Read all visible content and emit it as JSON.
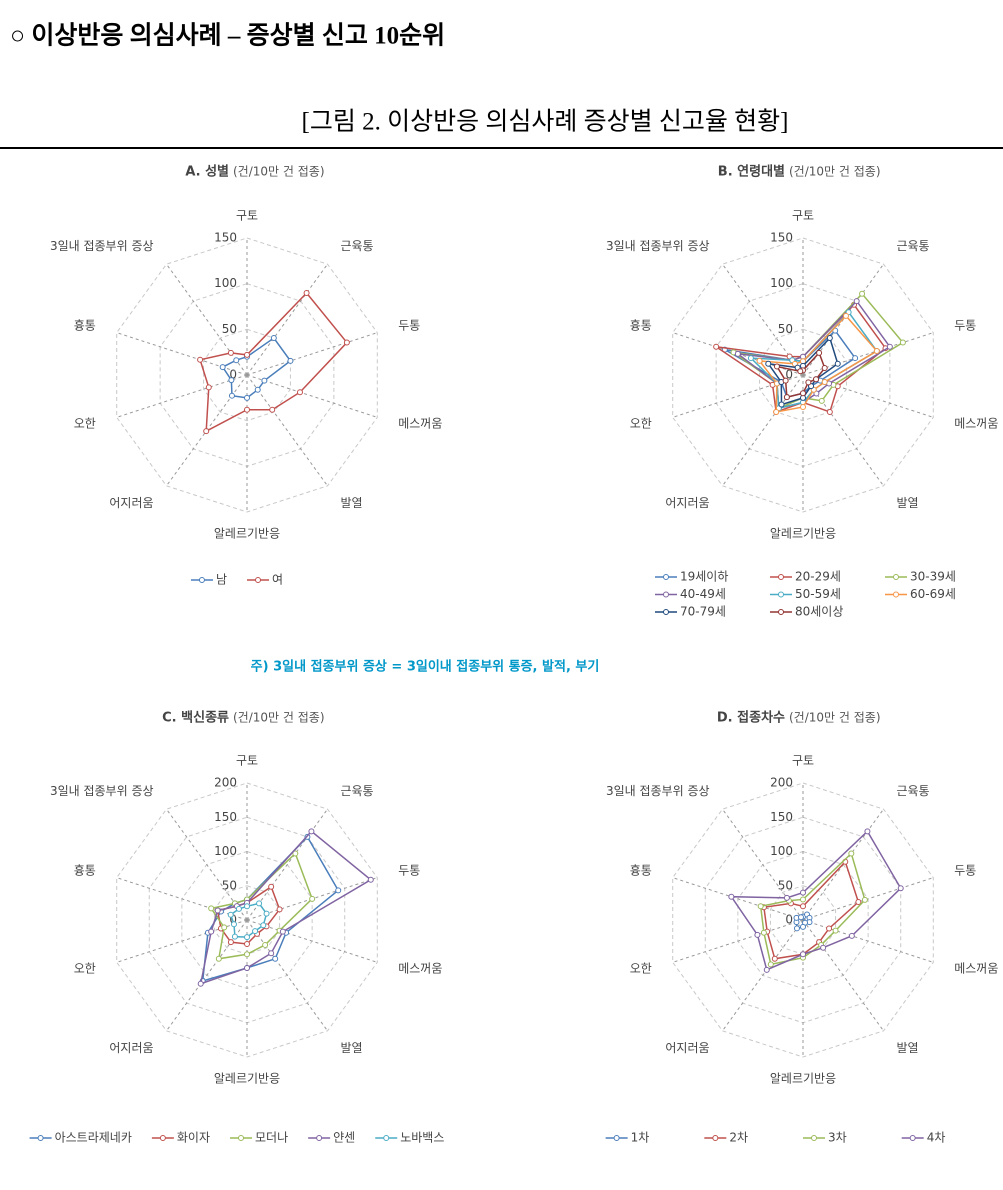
{
  "heading": "○ 이상반응 의심사례 – 증상별 신고 10순위",
  "figure_title": "[그림 2. 이상반응 의심사례 증상별 신고율 현황]",
  "note": "주) 3일내 접종부위 증상 = 3일이내 접종부위 통증, 발적, 부기",
  "chart_data": [
    {
      "type": "radar",
      "title": "A. 성별",
      "subtitle": "(건/10만 건 접종)",
      "categories": [
        "구토",
        "근육통",
        "두통",
        "메스꺼움",
        "발열",
        "알레르기반응",
        "어지러움",
        "오한",
        "흉통",
        "3일내 접종부위 증상"
      ],
      "rlim": [
        0,
        150
      ],
      "rticks": [
        0,
        50,
        100,
        150
      ],
      "series": [
        {
          "name": "남",
          "color": "#4a7ebb",
          "values": [
            20,
            50,
            50,
            20,
            20,
            25,
            28,
            18,
            28,
            20
          ]
        },
        {
          "name": "여",
          "color": "#c0504d",
          "values": [
            22,
            111,
            115,
            61,
            47,
            38,
            76,
            44,
            54,
            30
          ]
        }
      ]
    },
    {
      "type": "radar",
      "title": "B. 연령대별",
      "subtitle": "(건/10만 건 접종)",
      "categories": [
        "구토",
        "근육통",
        "두통",
        "메스꺼움",
        "발열",
        "알레르기반응",
        "어지러움",
        "오한",
        "흉통",
        "3일내 접종부위 증상"
      ],
      "rlim": [
        0,
        150
      ],
      "rticks": [
        0,
        50,
        100,
        150
      ],
      "series": [
        {
          "name": "19세이하",
          "color": "#4a7ebb",
          "values": [
            15,
            60,
            60,
            20,
            15,
            20,
            30,
            25,
            90,
            20
          ]
        },
        {
          "name": "20-29세",
          "color": "#c0504d",
          "values": [
            20,
            95,
            95,
            40,
            50,
            30,
            50,
            35,
            100,
            25
          ]
        },
        {
          "name": "30-39세",
          "color": "#9bbb59",
          "values": [
            20,
            110,
            115,
            35,
            35,
            25,
            45,
            30,
            80,
            20
          ]
        },
        {
          "name": "40-49세",
          "color": "#8064a2",
          "values": [
            20,
            100,
            100,
            30,
            25,
            30,
            45,
            30,
            75,
            20
          ]
        },
        {
          "name": "50-59세",
          "color": "#4bacc6",
          "values": [
            15,
            85,
            85,
            25,
            20,
            30,
            45,
            30,
            60,
            20
          ]
        },
        {
          "name": "60-69세",
          "color": "#f79646",
          "values": [
            15,
            80,
            85,
            25,
            20,
            35,
            50,
            30,
            50,
            15
          ]
        },
        {
          "name": "70-79세",
          "color": "#1f497d",
          "values": [
            10,
            50,
            40,
            15,
            15,
            25,
            40,
            25,
            40,
            10
          ]
        },
        {
          "name": "80세이상",
          "color": "#943634",
          "values": [
            5,
            30,
            25,
            15,
            10,
            20,
            30,
            20,
            30,
            5
          ]
        }
      ]
    },
    {
      "type": "radar",
      "title": "C. 백신종류",
      "subtitle": "(건/10만 건 접종)",
      "categories": [
        "구토",
        "근육통",
        "두통",
        "메스꺼움",
        "발열",
        "알레르기반응",
        "어지러움",
        "오한",
        "흉통",
        "3일내 접종부위 증상"
      ],
      "rlim": [
        0,
        200
      ],
      "rticks": [
        0,
        50,
        100,
        150,
        200
      ],
      "series": [
        {
          "name": "아스트라제네카",
          "color": "#4a7ebb",
          "values": [
            30,
            150,
            140,
            60,
            70,
            70,
            110,
            60,
            40,
            30
          ]
        },
        {
          "name": "화이자",
          "color": "#c0504d",
          "values": [
            25,
            60,
            50,
            30,
            25,
            35,
            40,
            40,
            45,
            25
          ]
        },
        {
          "name": "모더나",
          "color": "#9bbb59",
          "values": [
            30,
            120,
            100,
            50,
            45,
            50,
            70,
            35,
            55,
            30
          ]
        },
        {
          "name": "얀센",
          "color": "#8064a2",
          "values": [
            25,
            160,
            190,
            55,
            60,
            70,
            115,
            55,
            45,
            25
          ]
        },
        {
          "name": "노바백스",
          "color": "#4bacc6",
          "values": [
            20,
            30,
            30,
            25,
            20,
            25,
            30,
            20,
            25,
            20
          ]
        }
      ]
    },
    {
      "type": "radar",
      "title": "D. 접종차수",
      "subtitle": "(건/10만 건 접종)",
      "categories": [
        "구토",
        "근육통",
        "두통",
        "메스꺼움",
        "발열",
        "알레르기반응",
        "어지러움",
        "오한",
        "흉통",
        "3일내 접종부위 증상"
      ],
      "rlim": [
        0,
        200
      ],
      "rticks": [
        0,
        50,
        100,
        150,
        200
      ],
      "series": [
        {
          "name": "1차",
          "color": "#4a7ebb",
          "values": [
            5,
            10,
            10,
            10,
            5,
            10,
            15,
            10,
            10,
            5
          ]
        },
        {
          "name": "2차",
          "color": "#c0504d",
          "values": [
            20,
            105,
            85,
            40,
            40,
            50,
            70,
            55,
            60,
            30
          ]
        },
        {
          "name": "3차",
          "color": "#9bbb59",
          "values": [
            30,
            120,
            95,
            50,
            45,
            55,
            80,
            60,
            65,
            35
          ]
        },
        {
          "name": "4차",
          "color": "#8064a2",
          "values": [
            40,
            160,
            150,
            75,
            50,
            50,
            90,
            70,
            110,
            40
          ]
        }
      ]
    }
  ]
}
